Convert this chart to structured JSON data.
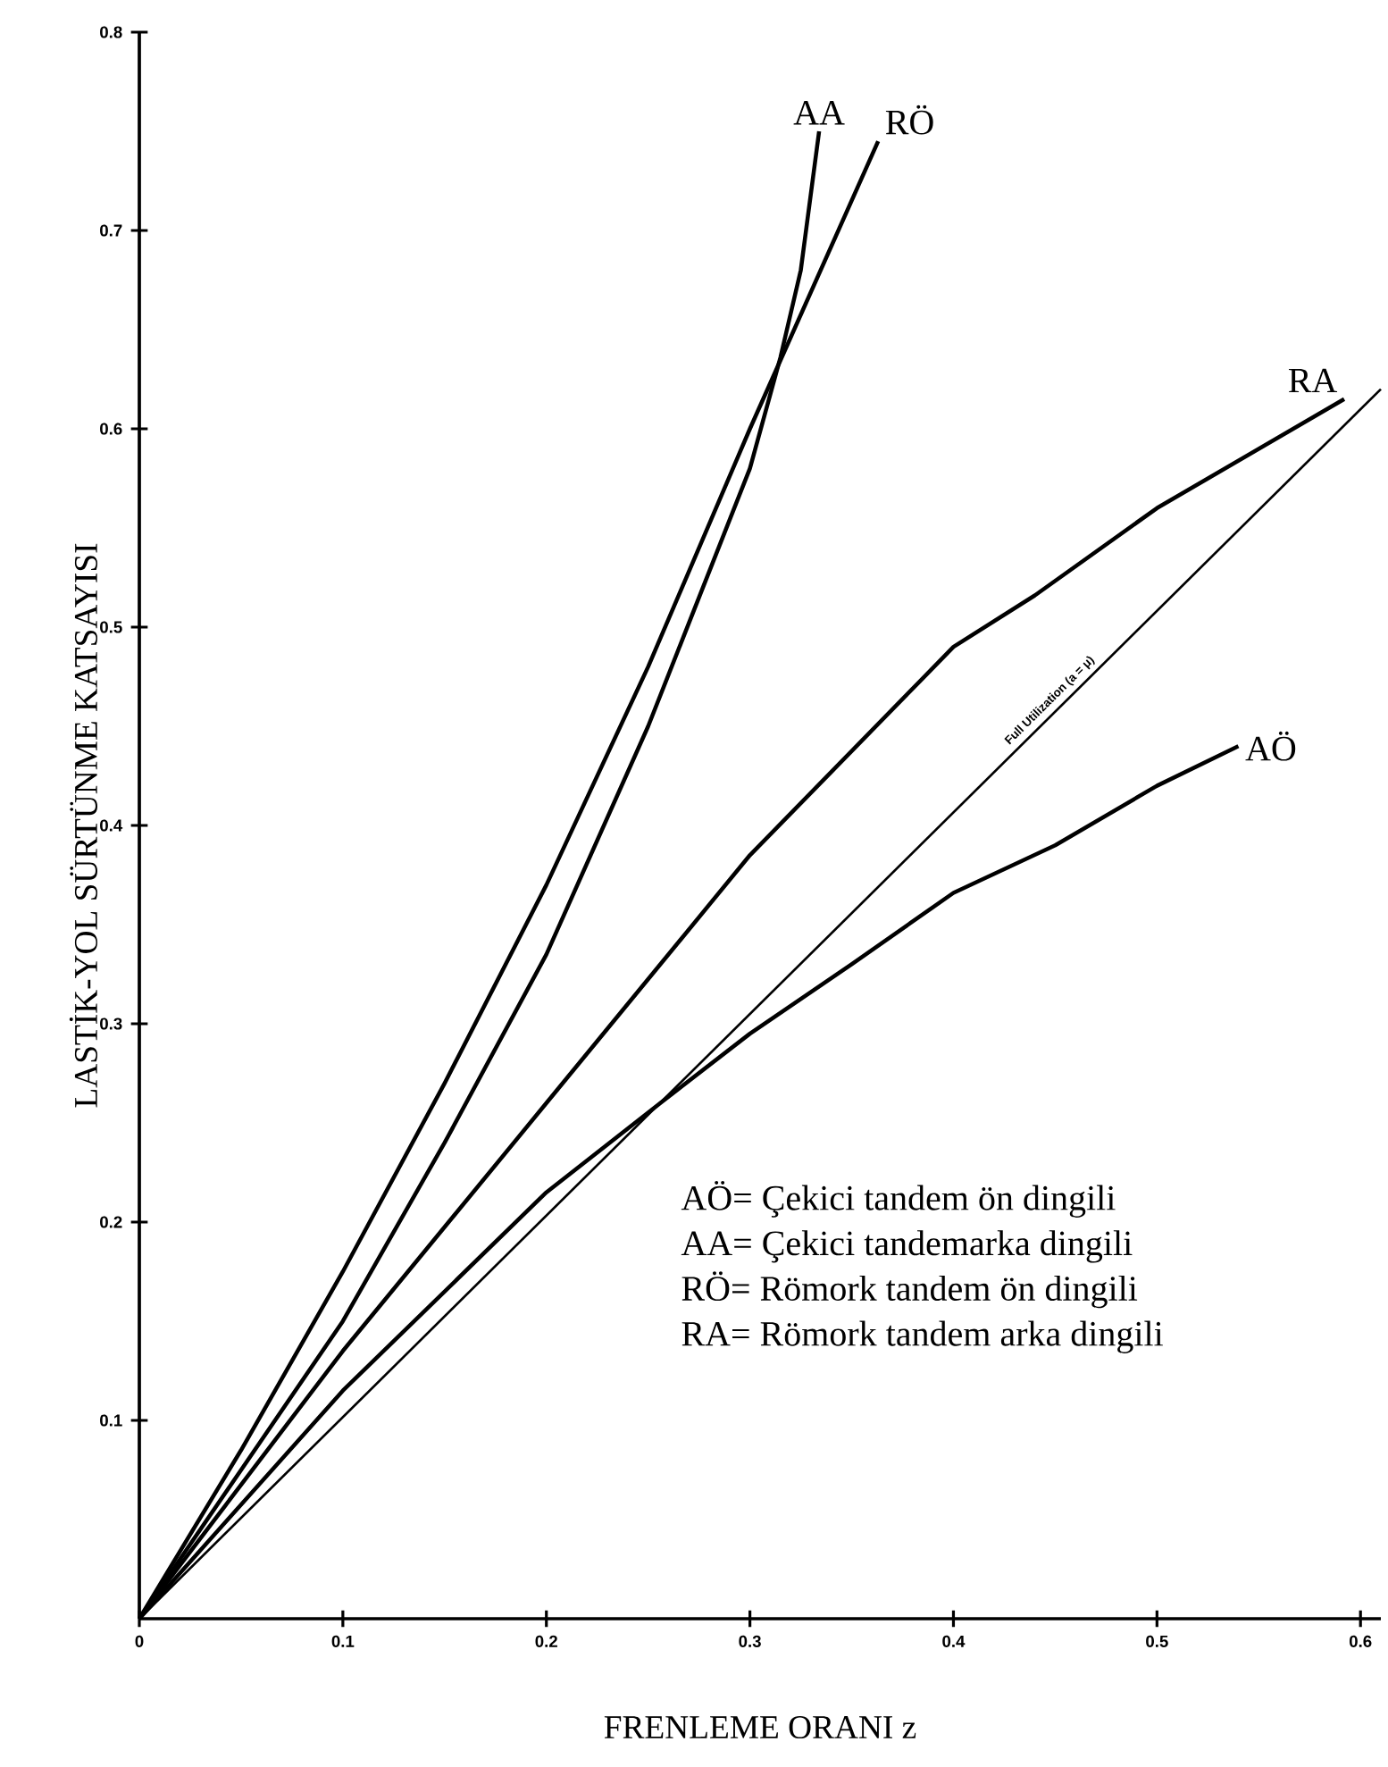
{
  "chart_data": {
    "type": "line",
    "xlabel": "FRENLEME ORANI z",
    "ylabel": "LASTİK-YOL SÜRTÜNME KATSAYISI",
    "xlim": [
      0,
      0.61
    ],
    "ylim": [
      0,
      0.8
    ],
    "xticks": [
      0,
      0.1,
      0.2,
      0.3,
      0.4,
      0.5,
      0.6
    ],
    "yticks": [
      0.1,
      0.2,
      0.3,
      0.4,
      0.5,
      0.6,
      0.7,
      0.8
    ],
    "line_style": "solid",
    "marker": "none",
    "series": [
      {
        "name": "AA",
        "color": "#000000",
        "x": [
          0,
          0.05,
          0.1,
          0.15,
          0.2,
          0.25,
          0.3,
          0.315,
          0.325,
          0.334
        ],
        "values": [
          0,
          0.075,
          0.15,
          0.24,
          0.335,
          0.45,
          0.58,
          0.636,
          0.68,
          0.75
        ]
      },
      {
        "name": "RÖ",
        "color": "#000000",
        "x": [
          0,
          0.05,
          0.1,
          0.15,
          0.2,
          0.25,
          0.3,
          0.363
        ],
        "values": [
          0,
          0.085,
          0.175,
          0.27,
          0.37,
          0.48,
          0.6,
          0.745
        ]
      },
      {
        "name": "RA",
        "color": "#000000",
        "x": [
          0,
          0.1,
          0.2,
          0.3,
          0.4,
          0.44,
          0.5,
          0.592
        ],
        "values": [
          0,
          0.135,
          0.26,
          0.385,
          0.49,
          0.516,
          0.56,
          0.615
        ]
      },
      {
        "name": "AÖ",
        "color": "#000000",
        "x": [
          0,
          0.1,
          0.2,
          0.256,
          0.3,
          0.35,
          0.4,
          0.45,
          0.5,
          0.54
        ],
        "values": [
          0,
          0.115,
          0.215,
          0.26,
          0.295,
          0.33,
          0.366,
          0.39,
          0.42,
          0.44
        ]
      },
      {
        "name": "Full Utilization  (a = μ)",
        "color": "#000000",
        "x": [
          0,
          0.61
        ],
        "values": [
          0,
          0.62
        ]
      }
    ],
    "annotations": [
      "AÖ= Çekici tandem ön dingili",
      "AA= Çekici tandemarka dingili",
      "RÖ= Römork tandem ön dingili",
      "RA= Römork tandem arka dingili"
    ]
  }
}
